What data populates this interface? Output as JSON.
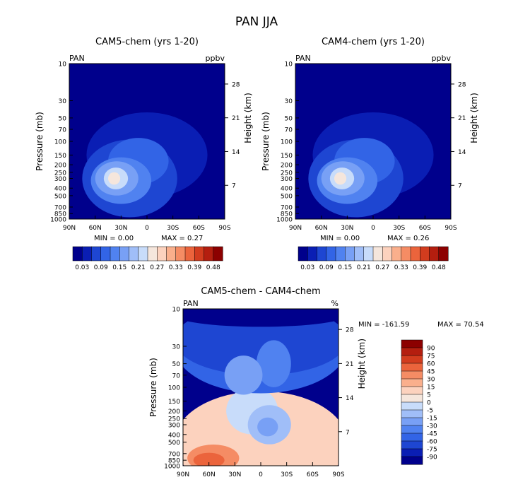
{
  "page_title": "PAN JJA",
  "chart_data": [
    {
      "type": "contour",
      "title": "CAM5-chem (yrs 1-20)",
      "variable_label": "PAN",
      "units_label": "ppbv",
      "ylabel": "Pressure (mb)",
      "y2label": "Height (km)",
      "x_ticks": [
        "90N",
        "60N",
        "30N",
        "0",
        "30S",
        "60S",
        "90S"
      ],
      "y_ticks": [
        "10",
        "30",
        "50",
        "70",
        "100",
        "150",
        "200",
        "250",
        "300",
        "400",
        "500",
        "700",
        "850",
        "1000"
      ],
      "y_ticks_values": [
        10,
        30,
        50,
        70,
        100,
        150,
        200,
        250,
        300,
        400,
        500,
        700,
        850,
        1000
      ],
      "height_ticks": [
        "28",
        "21",
        "14",
        "7"
      ],
      "height_ticks_values": [
        28,
        21,
        14,
        7
      ],
      "min_label": "MIN =    0.00",
      "max_label": "MAX =    0.27",
      "colorbar_ticks": [
        "0.03",
        "0.09",
        "0.15",
        "0.21",
        "0.27",
        "0.33",
        "0.39",
        "0.48"
      ],
      "colorbar_levels": [
        0.03,
        0.06,
        0.09,
        0.12,
        0.15,
        0.18,
        0.21,
        0.24,
        0.27,
        0.3,
        0.33,
        0.36,
        0.39,
        0.42,
        0.48
      ]
    },
    {
      "type": "contour",
      "title": "CAM4-chem (yrs 1-20)",
      "variable_label": "PAN",
      "units_label": "ppbv",
      "ylabel": "Pressure (mb)",
      "y2label": "Height (km)",
      "x_ticks": [
        "90N",
        "60N",
        "30N",
        "0",
        "30S",
        "60S",
        "90S"
      ],
      "y_ticks": [
        "10",
        "30",
        "50",
        "70",
        "100",
        "150",
        "200",
        "250",
        "300",
        "400",
        "500",
        "700",
        "850",
        "1000"
      ],
      "y_ticks_values": [
        10,
        30,
        50,
        70,
        100,
        150,
        200,
        250,
        300,
        400,
        500,
        700,
        850,
        1000
      ],
      "height_ticks": [
        "28",
        "21",
        "14",
        "7"
      ],
      "height_ticks_values": [
        28,
        21,
        14,
        7
      ],
      "min_label": "MIN =    0.00",
      "max_label": "MAX =    0.26",
      "colorbar_ticks": [
        "0.03",
        "0.09",
        "0.15",
        "0.21",
        "0.27",
        "0.33",
        "0.39",
        "0.48"
      ],
      "colorbar_levels": [
        0.03,
        0.06,
        0.09,
        0.12,
        0.15,
        0.18,
        0.21,
        0.24,
        0.27,
        0.3,
        0.33,
        0.36,
        0.39,
        0.42,
        0.48
      ]
    },
    {
      "type": "contour",
      "title": "CAM5-chem - CAM4-chem",
      "variable_label": "PAN",
      "units_label": "%",
      "ylabel": "Pressure (mb)",
      "y2label": "Height (km)",
      "x_ticks": [
        "90N",
        "60N",
        "30N",
        "0",
        "30S",
        "60S",
        "90S"
      ],
      "y_ticks": [
        "10",
        "30",
        "50",
        "70",
        "100",
        "150",
        "200",
        "250",
        "300",
        "400",
        "500",
        "700",
        "850",
        "1000"
      ],
      "y_ticks_values": [
        10,
        30,
        50,
        70,
        100,
        150,
        200,
        250,
        300,
        400,
        500,
        700,
        850,
        1000
      ],
      "height_ticks": [
        "28",
        "21",
        "14",
        "7"
      ],
      "height_ticks_values": [
        28,
        21,
        14,
        7
      ],
      "min_label": "MIN = -161.59",
      "max_label": "MAX =   70.54",
      "colorbar_ticks": [
        "90",
        "75",
        "60",
        "45",
        "30",
        "15",
        "5",
        "0",
        "-5",
        "-15",
        "-30",
        "-45",
        "-60",
        "-75",
        "-90"
      ],
      "colorbar_levels": [
        90,
        75,
        60,
        45,
        30,
        15,
        5,
        0,
        -5,
        -15,
        -30,
        -45,
        -60,
        -75,
        -90
      ]
    }
  ],
  "colors": {
    "seq": [
      "#00008c",
      "#0a1eb4",
      "#1e46d2",
      "#3264e6",
      "#5082f0",
      "#78a0f5",
      "#a0bef8",
      "#c8dcfa",
      "#f5e6dc",
      "#fcd2be",
      "#faaf8c",
      "#f58c64",
      "#eb643c",
      "#d23c1e",
      "#b41e0f",
      "#8c0000"
    ],
    "div": [
      "#00008c",
      "#0a1eb4",
      "#1e46d2",
      "#3264e6",
      "#5082f0",
      "#78a0f5",
      "#a0bef8",
      "#c8dcfa",
      "#f5e6dc",
      "#fcd2be",
      "#faaf8c",
      "#f58c64",
      "#eb643c",
      "#d23c1e",
      "#b41e0f",
      "#8c0000"
    ]
  }
}
